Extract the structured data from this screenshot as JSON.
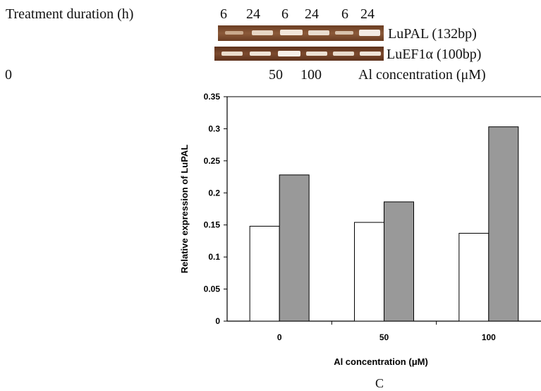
{
  "header": {
    "duration_label": "Treatment duration (h)",
    "durations": [
      "6",
      "24",
      "6",
      "24",
      "6",
      "24"
    ],
    "gel_rows": [
      {
        "label": "LuPAL (132bp)"
      },
      {
        "label": "LuEF1α (100bp)"
      }
    ],
    "concentrations": [
      "0",
      "50",
      "100"
    ],
    "concentration_label": "Al concentration (μM)"
  },
  "chart_data": {
    "type": "bar",
    "categories": [
      "0",
      "50",
      "100"
    ],
    "series": [
      {
        "name": "",
        "values": [
          0.148,
          0.154,
          0.137
        ],
        "color": "#ffffff"
      },
      {
        "name": "",
        "values": [
          0.228,
          0.186,
          0.303
        ],
        "color": "#999999"
      }
    ],
    "xlabel": "Al concentration (μM)",
    "ylabel": "Relative expression of LuPAL",
    "ylim": [
      0,
      0.35
    ],
    "yticks": [
      "0",
      "0.05",
      "0.1",
      "0.15",
      "0.2",
      "0.25",
      "0.3",
      "0.35"
    ],
    "grid": false
  },
  "caption": "C"
}
